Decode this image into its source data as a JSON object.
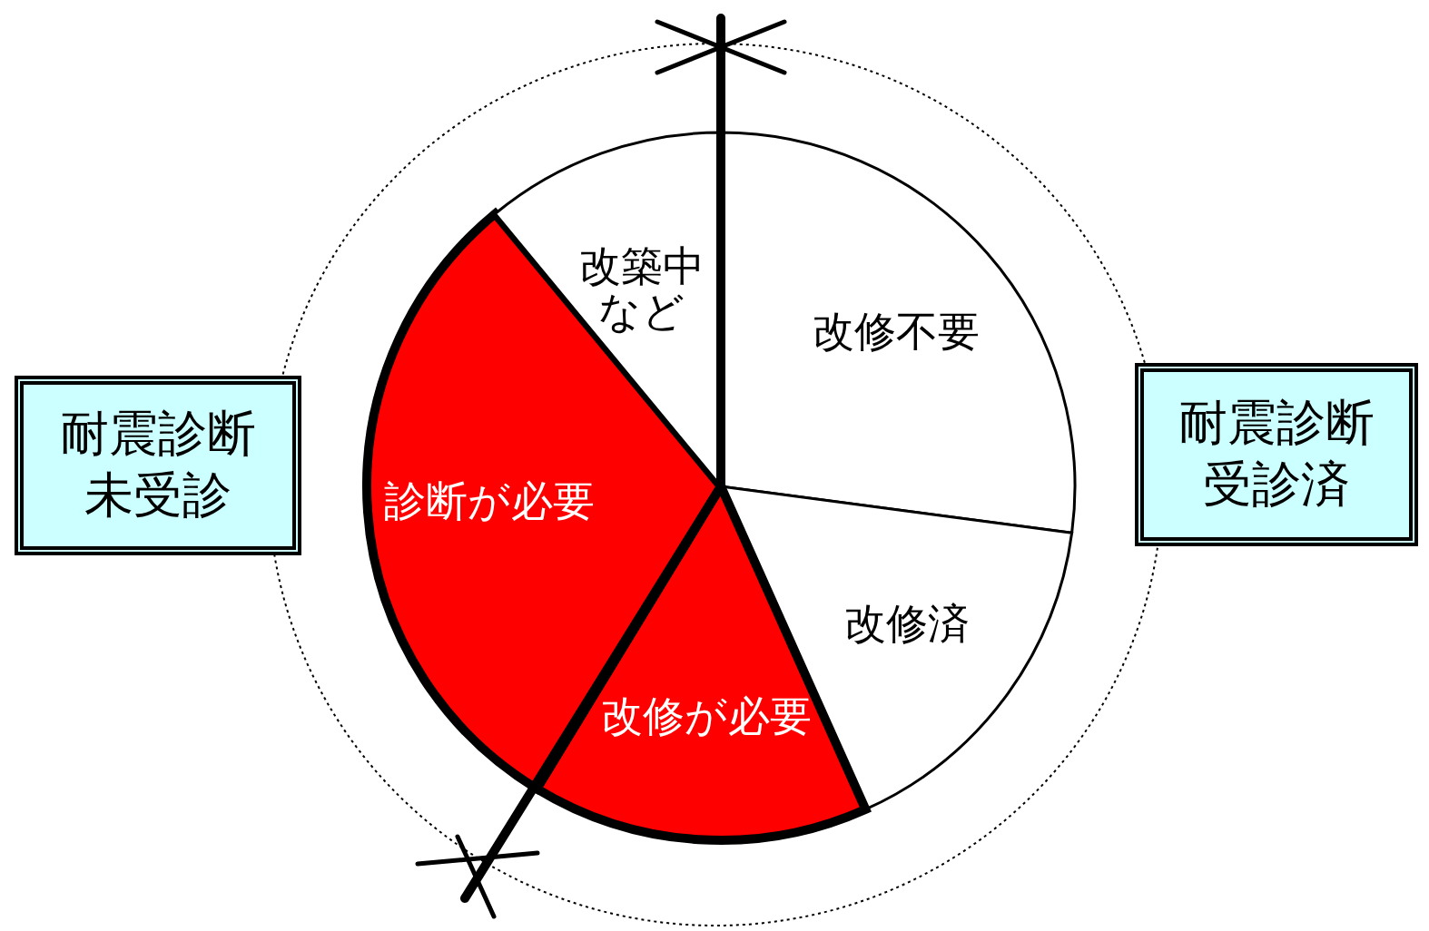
{
  "chart_data": {
    "type": "pie",
    "categories": [
      "改修不要",
      "改修済",
      "改修が必要",
      "診断が必要",
      "改築中など"
    ],
    "values": [
      27.1,
      16.2,
      15.4,
      30.3,
      11.0
    ],
    "colors": [
      "#ffffff",
      "#ffffff",
      "#ff0000",
      "#ff0000",
      "#ffffff"
    ],
    "annotations": [
      "耐震診断未受診",
      "耐震診断受診済"
    ],
    "legend": false
  }
}
